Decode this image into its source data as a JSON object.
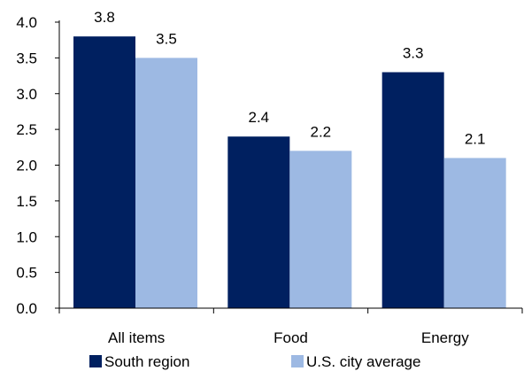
{
  "chart_data": {
    "type": "bar",
    "categories": [
      "All items",
      "Food",
      "Energy"
    ],
    "series": [
      {
        "name": "South region",
        "values": [
          3.8,
          2.4,
          3.3
        ],
        "color": "#002060"
      },
      {
        "name": "U.S. city average",
        "values": [
          3.5,
          2.2,
          2.1
        ],
        "color": "#9DB9E3"
      }
    ],
    "ylim": [
      0,
      4
    ],
    "yticks": [
      "0.0",
      "0.5",
      "1.0",
      "1.5",
      "2.0",
      "2.5",
      "3.0",
      "3.5",
      "4.0"
    ],
    "data_labels": [
      [
        "3.8",
        "2.4",
        "3.3"
      ],
      [
        "3.5",
        "2.2",
        "2.1"
      ]
    ],
    "title": "",
    "xlabel": "",
    "ylabel": "",
    "grid": false,
    "legend_position": "bottom"
  }
}
